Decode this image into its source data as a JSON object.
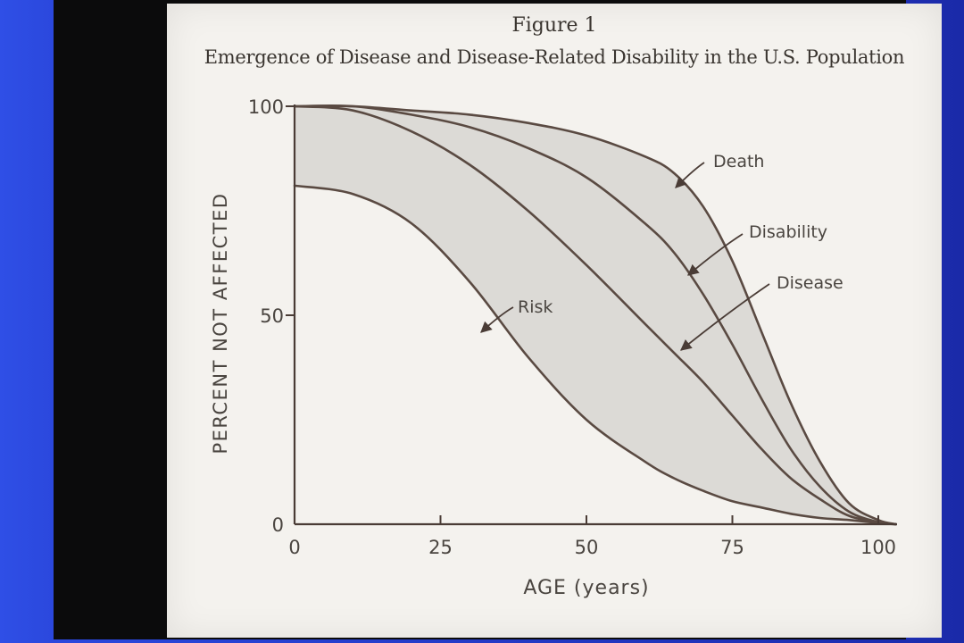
{
  "chart_data": {
    "type": "line",
    "figure_label": "Figure 1",
    "title": "Emergence of Disease and Disease-Related Disability in the U.S. Population",
    "xlabel": "AGE (years)",
    "ylabel": "PERCENT NOT AFFECTED",
    "xlim": [
      0,
      103
    ],
    "ylim": [
      0,
      100
    ],
    "x_ticks": [
      "0",
      "25",
      "50",
      "75",
      "100"
    ],
    "y_ticks": [
      "0",
      "50",
      "100"
    ],
    "grid": false,
    "shading": "light gray fill between the Death curve and the Risk curve",
    "colors": {
      "curve": "#5a4a42",
      "fill": "#dcdad6",
      "paper": "#f4f2ee"
    },
    "x": [
      0,
      10,
      20,
      30,
      40,
      50,
      60,
      65,
      70,
      75,
      80,
      85,
      90,
      95,
      100,
      103
    ],
    "series": [
      {
        "name": "Death",
        "values": [
          100,
          100,
          99,
          98,
          96,
          93,
          88,
          84,
          76,
          63,
          46,
          29,
          15,
          5,
          1,
          0
        ]
      },
      {
        "name": "Disability",
        "values": [
          100,
          100,
          98,
          95,
          90,
          83,
          72,
          65,
          55,
          43,
          30,
          18,
          9,
          3,
          0.5,
          0
        ]
      },
      {
        "name": "Disease",
        "values": [
          100,
          99,
          94,
          86,
          75,
          62,
          48,
          41,
          34,
          26,
          18,
          11,
          6,
          2,
          0.5,
          0
        ]
      },
      {
        "name": "Risk",
        "values": [
          81,
          79,
          72,
          58,
          40,
          25,
          15,
          11,
          8,
          5.5,
          4,
          2.5,
          1.5,
          1,
          0.3,
          0
        ]
      }
    ]
  }
}
